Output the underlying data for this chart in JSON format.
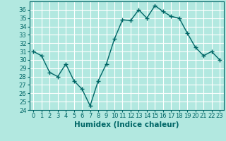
{
  "x": [
    0,
    1,
    2,
    3,
    4,
    5,
    6,
    7,
    8,
    9,
    10,
    11,
    12,
    13,
    14,
    15,
    16,
    17,
    18,
    19,
    20,
    21,
    22,
    23
  ],
  "y": [
    31,
    30.5,
    28.5,
    28,
    29.5,
    27.5,
    26.5,
    24.5,
    27.5,
    29.5,
    32.5,
    34.8,
    34.7,
    36,
    35,
    36.5,
    35.8,
    35.2,
    35,
    33.2,
    31.5,
    30.5,
    31,
    30
  ],
  "line_color": "#006666",
  "marker": "+",
  "marker_size": 4,
  "marker_linewidth": 1.0,
  "bg_color": "#b2e8e0",
  "grid_color": "#ffffff",
  "xlabel": "Humidex (Indice chaleur)",
  "ylim": [
    24,
    37
  ],
  "xlim": [
    -0.5,
    23.5
  ],
  "yticks": [
    24,
    25,
    26,
    27,
    28,
    29,
    30,
    31,
    32,
    33,
    34,
    35,
    36
  ],
  "xticks": [
    0,
    1,
    2,
    3,
    4,
    5,
    6,
    7,
    8,
    9,
    10,
    11,
    12,
    13,
    14,
    15,
    16,
    17,
    18,
    19,
    20,
    21,
    22,
    23
  ],
  "tick_fontsize": 6,
  "label_fontsize": 7.5,
  "linewidth": 1.0
}
